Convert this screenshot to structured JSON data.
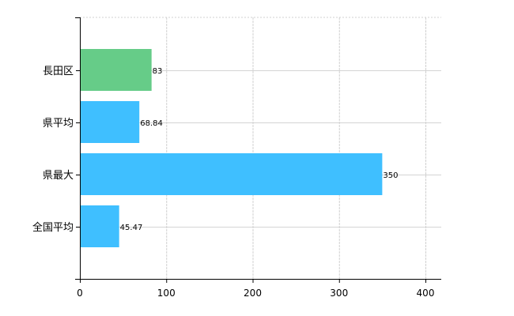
{
  "chart_data": {
    "type": "bar",
    "orientation": "horizontal",
    "categories": [
      "長田区",
      "県平均",
      "県最大",
      "全国平均"
    ],
    "values": [
      83,
      68.84,
      350,
      45.47
    ],
    "data_labels": [
      "83",
      "68.84",
      "350",
      "45.47"
    ],
    "bar_colors": [
      "#66cc88",
      "#3fbfff",
      "#3fbfff",
      "#3fbfff"
    ],
    "x_ticks": [
      "0",
      "100",
      "200",
      "300",
      "400"
    ],
    "xlim": [
      0,
      418
    ],
    "grid": true,
    "title": "",
    "xlabel": "",
    "ylabel": ""
  }
}
